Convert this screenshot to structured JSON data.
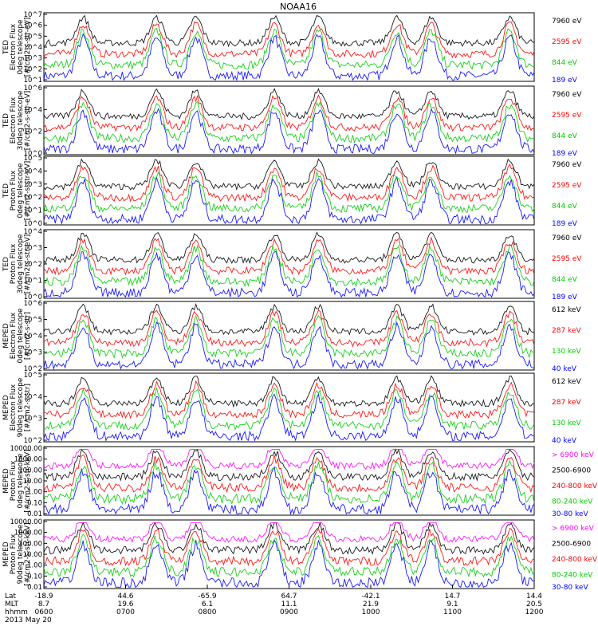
{
  "chart_data": {
    "type": "scatter",
    "title": "NOAA16",
    "panels": [
      {
        "ylabel": [
          "TED",
          "Electron Flux",
          "0deg telescope",
          "[#/cm2-s-str-eV]"
        ],
        "yticks": [
          "10^1",
          "10^2",
          "10^3",
          "10^4",
          "10^5",
          "10^6",
          "10^7"
        ],
        "legend": [
          {
            "label": "7960 eV",
            "color": "#000000"
          },
          {
            "label": "2595 eV",
            "color": "#ff0000"
          },
          {
            "label": "844 eV",
            "color": "#00cc00"
          },
          {
            "label": "189 eV",
            "color": "#0000ff"
          }
        ]
      },
      {
        "ylabel": [
          "TED",
          "Electron Flux",
          "30deg telescope",
          "[#/cm2-s-str-eV]"
        ],
        "yticks": [
          "10^0",
          "10^2",
          "10^4",
          "10^6"
        ],
        "legend": [
          {
            "label": "7960 eV",
            "color": "#000000"
          },
          {
            "label": "2595 eV",
            "color": "#ff0000"
          },
          {
            "label": "844 eV",
            "color": "#00cc00"
          },
          {
            "label": "189 eV",
            "color": "#0000ff"
          }
        ]
      },
      {
        "ylabel": [
          "TED",
          "Proton Flux",
          "0deg telescope",
          "[#/cm2-s-str-eV]"
        ],
        "yticks": [
          "10^0",
          "10^1",
          "10^2",
          "10^3",
          "10^4",
          "10^5"
        ],
        "legend": [
          {
            "label": "7960 eV",
            "color": "#000000"
          },
          {
            "label": "2595 eV",
            "color": "#ff0000"
          },
          {
            "label": "844 eV",
            "color": "#00cc00"
          },
          {
            "label": "189 eV",
            "color": "#0000ff"
          }
        ]
      },
      {
        "ylabel": [
          "TED",
          "Proton Flux",
          "30deg telescope",
          "[#/cm2-s-str-eV]"
        ],
        "yticks": [
          "10^0",
          "10^1",
          "10^2",
          "10^3",
          "10^4"
        ],
        "legend": [
          {
            "label": "7960 eV",
            "color": "#000000"
          },
          {
            "label": "2595 eV",
            "color": "#ff0000"
          },
          {
            "label": "844 eV",
            "color": "#00cc00"
          },
          {
            "label": "189 eV",
            "color": "#0000ff"
          }
        ]
      },
      {
        "ylabel": [
          "MEPED",
          "Electron Flux",
          "0deg telescope",
          "[#/cm2-s-str]"
        ],
        "yticks": [
          "10^2",
          "10^3",
          "10^4",
          "10^5",
          "10^6"
        ],
        "legend": [
          {
            "label": "612 keV",
            "color": "#000000"
          },
          {
            "label": "287 keV",
            "color": "#ff0000"
          },
          {
            "label": "130 keV",
            "color": "#00cc00"
          },
          {
            "label": "40 keV",
            "color": "#0000ff"
          }
        ]
      },
      {
        "ylabel": [
          "MEPED",
          "Electron Flux",
          "90deg telescope",
          "[#/cm2-s-str]"
        ],
        "yticks": [
          "10^2",
          "10^3",
          "10^4",
          "10^5"
        ],
        "legend": [
          {
            "label": "612 keV",
            "color": "#000000"
          },
          {
            "label": "287 keV",
            "color": "#ff0000"
          },
          {
            "label": "130 keV",
            "color": "#00cc00"
          },
          {
            "label": "40 keV",
            "color": "#0000ff"
          }
        ]
      },
      {
        "ylabel": [
          "MEPED",
          "Proton Flux",
          "0deg telescope",
          "[#/cm2-s-str-keV]"
        ],
        "yticks": [
          "0.01",
          "0.10",
          "1.00",
          "10.00",
          "100.00",
          "1000.00",
          "10000.00"
        ],
        "legend": [
          {
            "label": "> 6900 keV",
            "color": "#ff00ff"
          },
          {
            "label": "2500-6900",
            "color": "#000000"
          },
          {
            "label": "240-800 keV",
            "color": "#ff0000"
          },
          {
            "label": "80-240 keV",
            "color": "#00cc00"
          },
          {
            "label": "30-80 keV",
            "color": "#0000ff"
          }
        ]
      },
      {
        "ylabel": [
          "MEPED",
          "Proton Flux",
          "90deg telescope",
          "[#/cm2-s-str-keV]"
        ],
        "yticks": [
          "0.01",
          "0.10",
          "1.00",
          "10.00",
          "100.00",
          "1000.00",
          "10000.00"
        ],
        "legend": [
          {
            "label": "> 6900 keV",
            "color": "#ff00ff"
          },
          {
            "label": "2500-6900",
            "color": "#000000"
          },
          {
            "label": "240-800 keV",
            "color": "#ff0000"
          },
          {
            "label": "80-240 keV",
            "color": "#00cc00"
          },
          {
            "label": "30-80 keV",
            "color": "#0000ff"
          }
        ]
      }
    ],
    "x_axis": {
      "row_labels": [
        "Lat",
        "MLT",
        "hhmm"
      ],
      "lat": [
        "-18.9",
        "44.6",
        "-65.9",
        "64.7",
        "-42.1",
        "14.7",
        "14.4"
      ],
      "mlt": [
        "8.7",
        "19.6",
        "6.1",
        "11.1",
        "21.9",
        "9.1",
        "20.5"
      ],
      "hhmm": [
        "0600",
        "0700",
        "0800",
        "0900",
        "1000",
        "1100",
        "1200"
      ],
      "date": "2013 May 20"
    }
  }
}
